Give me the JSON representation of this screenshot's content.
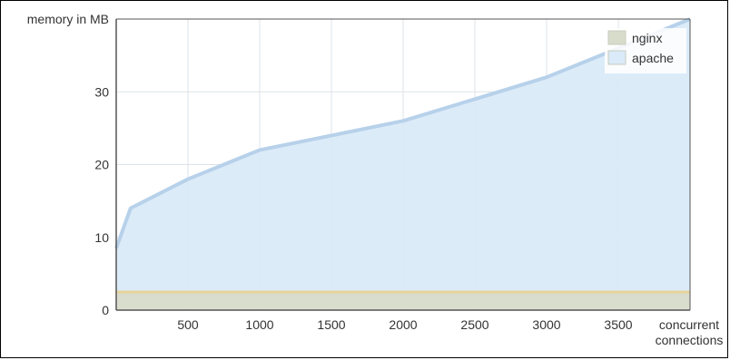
{
  "chart_data": {
    "type": "area",
    "ylabel": "memory in MB",
    "xlabel": "concurrent\nconnections",
    "xlim": [
      0,
      4000
    ],
    "ylim": [
      0,
      40
    ],
    "xticks": [
      500,
      1000,
      1500,
      2000,
      2500,
      3000,
      3500
    ],
    "yticks": [
      0,
      10,
      20,
      30
    ],
    "grid": true,
    "legend_placement": "top-right",
    "series": [
      {
        "name": "nginx",
        "color": "#d8dccb",
        "line_color": "#e6d49a",
        "x": [
          0,
          4000
        ],
        "y": [
          2.5,
          2.5
        ]
      },
      {
        "name": "apache",
        "color": "#daeaf8",
        "line_color": "#b7d1ea",
        "x": [
          0,
          100,
          500,
          1000,
          1500,
          2000,
          2500,
          3000,
          3500,
          4000
        ],
        "y": [
          8.5,
          14,
          18,
          22,
          24,
          26,
          29,
          32,
          36,
          40
        ]
      }
    ]
  }
}
